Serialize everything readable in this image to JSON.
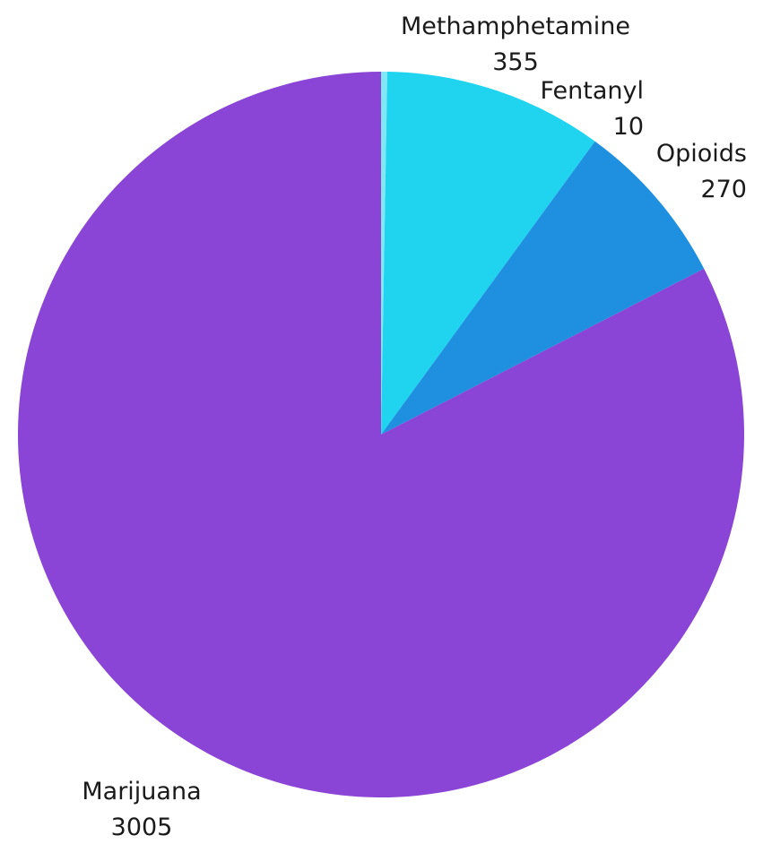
{
  "chart_data": {
    "type": "pie",
    "title": "",
    "slices": [
      {
        "label": "Fentanyl",
        "value": 10,
        "color": "#7fe8f4"
      },
      {
        "label": "Methamphetamine",
        "value": 355,
        "color": "#20d4f0"
      },
      {
        "label": "Opioids",
        "value": 270,
        "color": "#1f8fe0"
      },
      {
        "label": "Marijuana",
        "value": 3005,
        "color": "#8a45d6"
      }
    ],
    "start_angle_deg": 0,
    "direction": "clockwise"
  }
}
